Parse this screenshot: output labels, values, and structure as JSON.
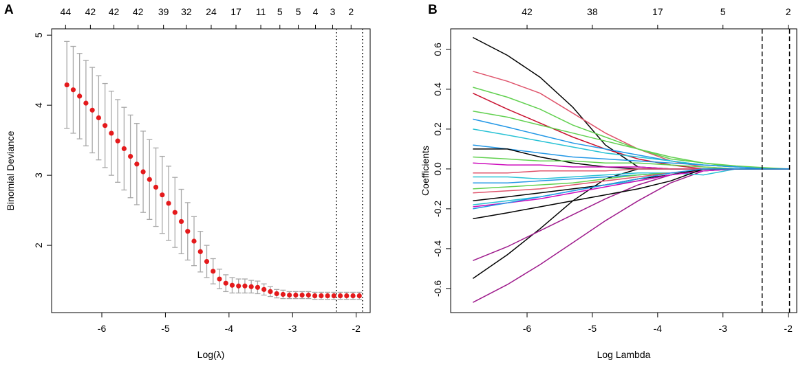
{
  "chart_data": [
    {
      "type": "errorbar",
      "panel": "A",
      "xlabel": "Log(λ)",
      "ylabel": "Binomial Deviance",
      "xlim": [
        -6.79,
        -1.78
      ],
      "ylim": [
        1.04,
        5.09
      ],
      "xticks": [
        -6,
        -5,
        -4,
        -3,
        -2
      ],
      "yticks": [
        2,
        3,
        4,
        5
      ],
      "top_ticks": [
        {
          "value": -6.57,
          "label": "44"
        },
        {
          "value": -6.18,
          "label": "42"
        },
        {
          "value": -5.81,
          "label": "42"
        },
        {
          "value": -5.43,
          "label": "42"
        },
        {
          "value": -5.03,
          "label": "39"
        },
        {
          "value": -4.67,
          "label": "32"
        },
        {
          "value": -4.28,
          "label": "24"
        },
        {
          "value": -3.89,
          "label": "17"
        },
        {
          "value": -3.5,
          "label": "11"
        },
        {
          "value": -3.2,
          "label": "5"
        },
        {
          "value": -2.91,
          "label": "5"
        },
        {
          "value": -2.64,
          "label": "4"
        },
        {
          "value": -2.37,
          "label": "3"
        },
        {
          "value": -2.08,
          "label": "2"
        }
      ],
      "vlines": [
        -2.31,
        -1.9
      ],
      "vline_style": "dotted",
      "color": "#e41a1c",
      "error_color": "#a8a8a8",
      "x": [
        -6.55,
        -6.45,
        -6.35,
        -6.25,
        -6.15,
        -6.05,
        -5.95,
        -5.85,
        -5.75,
        -5.65,
        -5.55,
        -5.45,
        -5.35,
        -5.25,
        -5.15,
        -5.05,
        -4.95,
        -4.85,
        -4.75,
        -4.65,
        -4.55,
        -4.45,
        -4.35,
        -4.25,
        -4.15,
        -4.05,
        -3.95,
        -3.85,
        -3.75,
        -3.65,
        -3.55,
        -3.45,
        -3.35,
        -3.25,
        -3.15,
        -3.05,
        -2.95,
        -2.85,
        -2.75,
        -2.65,
        -2.55,
        -2.45,
        -2.35,
        -2.25,
        -2.15,
        -2.05,
        -1.95
      ],
      "values": [
        4.29,
        4.22,
        4.13,
        4.03,
        3.93,
        3.82,
        3.71,
        3.6,
        3.49,
        3.38,
        3.27,
        3.16,
        3.05,
        2.94,
        2.83,
        2.72,
        2.6,
        2.47,
        2.34,
        2.2,
        2.06,
        1.91,
        1.77,
        1.63,
        1.52,
        1.46,
        1.43,
        1.42,
        1.42,
        1.41,
        1.4,
        1.37,
        1.34,
        1.31,
        1.3,
        1.29,
        1.29,
        1.29,
        1.29,
        1.28,
        1.28,
        1.28,
        1.28,
        1.28,
        1.28,
        1.28,
        1.28
      ],
      "errors": [
        0.62,
        0.62,
        0.61,
        0.61,
        0.61,
        0.6,
        0.6,
        0.6,
        0.59,
        0.59,
        0.59,
        0.58,
        0.58,
        0.57,
        0.56,
        0.55,
        0.53,
        0.5,
        0.46,
        0.41,
        0.35,
        0.29,
        0.23,
        0.18,
        0.14,
        0.12,
        0.11,
        0.1,
        0.1,
        0.09,
        0.09,
        0.08,
        0.07,
        0.06,
        0.06,
        0.05,
        0.05,
        0.05,
        0.05,
        0.05,
        0.05,
        0.05,
        0.05,
        0.05,
        0.05,
        0.05,
        0.05
      ]
    },
    {
      "type": "line",
      "panel": "B",
      "xlabel": "Log Lambda",
      "ylabel": "Coefficients",
      "xlim": [
        -7.17,
        -1.87
      ],
      "ylim": [
        -0.721,
        0.703
      ],
      "xticks": [
        -6,
        -5,
        -4,
        -3,
        -2
      ],
      "yticks": [
        -0.6,
        -0.4,
        -0.2,
        {
          "value": 0,
          "label": "0.0"
        },
        0.2,
        0.4,
        0.6
      ],
      "top_ticks": [
        {
          "value": -6,
          "label": "42"
        },
        {
          "value": -5,
          "label": "38"
        },
        {
          "value": -4,
          "label": "17"
        },
        {
          "value": -3,
          "label": "5"
        },
        {
          "value": -2,
          "label": "2"
        }
      ],
      "vlines": [
        -2.4,
        -1.98
      ],
      "vline_style": "dashed",
      "x": [
        -6.83,
        -6.3,
        -5.8,
        -5.3,
        -4.8,
        -4.3,
        -3.8,
        -3.3,
        -2.8,
        -2.3,
        -1.98
      ],
      "series": [
        {
          "color": "#000000",
          "values": [
            0.66,
            0.57,
            0.46,
            0.31,
            0.12,
            0.01,
            0,
            0,
            0,
            0,
            0
          ]
        },
        {
          "color": "#000000",
          "values": [
            -0.55,
            -0.43,
            -0.3,
            -0.16,
            -0.05,
            0,
            0,
            0,
            0,
            0,
            0
          ]
        },
        {
          "color": "#9e1a8c",
          "values": [
            -0.67,
            -0.58,
            -0.48,
            -0.37,
            -0.26,
            -0.16,
            -0.07,
            -0.01,
            0,
            0,
            0
          ]
        },
        {
          "color": "#9e1a8c",
          "values": [
            -0.46,
            -0.39,
            -0.31,
            -0.23,
            -0.15,
            -0.08,
            -0.03,
            0,
            0,
            0,
            0
          ]
        },
        {
          "color": "#df536b",
          "values": [
            0.49,
            0.44,
            0.38,
            0.28,
            0.18,
            0.1,
            0.04,
            0.01,
            0,
            0,
            0
          ]
        },
        {
          "color": "#61d04f",
          "values": [
            0.41,
            0.36,
            0.3,
            0.22,
            0.16,
            0.1,
            0.05,
            0.03,
            0.015,
            0.005,
            0
          ]
        },
        {
          "color": "#c8102e",
          "values": [
            0.38,
            0.3,
            0.23,
            0.16,
            0.1,
            0.05,
            0.02,
            0,
            0,
            0,
            0
          ]
        },
        {
          "color": "#61d04f",
          "values": [
            0.29,
            0.26,
            0.22,
            0.18,
            0.14,
            0.1,
            0.06,
            0.03,
            0.01,
            0,
            0
          ]
        },
        {
          "color": "#2297e6",
          "values": [
            0.25,
            0.21,
            0.17,
            0.13,
            0.1,
            0.07,
            0.04,
            0.02,
            0.01,
            0,
            0
          ]
        },
        {
          "color": "#28c2d5",
          "values": [
            0.2,
            0.17,
            0.14,
            0.11,
            0.08,
            0.06,
            0.04,
            0.02,
            0.01,
            0,
            0
          ]
        },
        {
          "color": "#2297e6",
          "values": [
            0.12,
            0.1,
            0.08,
            0.06,
            0.05,
            0.04,
            0.03,
            0.02,
            0.01,
            0,
            0
          ]
        },
        {
          "color": "#000000",
          "values": [
            0.1,
            0.1,
            0.06,
            0.03,
            0.01,
            0,
            0,
            0,
            0,
            0,
            0
          ]
        },
        {
          "color": "#61d04f",
          "values": [
            0.06,
            0.05,
            0.04,
            0.04,
            0.03,
            0.03,
            0.02,
            0.01,
            0,
            0,
            0
          ]
        },
        {
          "color": "#cd0bbc",
          "values": [
            0.03,
            0.02,
            0.02,
            0.01,
            0.01,
            0.01,
            0,
            0,
            0,
            0,
            0
          ]
        },
        {
          "color": "#df536b",
          "values": [
            -0.02,
            -0.02,
            -0.01,
            -0.01,
            -0.01,
            0,
            0,
            0,
            0,
            0,
            0
          ]
        },
        {
          "color": "#28c2d5",
          "values": [
            -0.04,
            -0.04,
            -0.05,
            -0.04,
            -0.03,
            -0.02,
            -0.02,
            -0.03,
            0,
            0,
            0
          ]
        },
        {
          "color": "#2297e6",
          "values": [
            -0.07,
            -0.07,
            -0.06,
            -0.05,
            -0.04,
            -0.03,
            -0.02,
            -0.01,
            0,
            0,
            0
          ]
        },
        {
          "color": "#61d04f",
          "values": [
            -0.1,
            -0.09,
            -0.08,
            -0.07,
            -0.05,
            -0.03,
            -0.02,
            -0.01,
            0,
            0,
            0
          ]
        },
        {
          "color": "#df536b",
          "values": [
            -0.12,
            -0.11,
            -0.1,
            -0.08,
            -0.06,
            -0.04,
            -0.02,
            -0.01,
            0,
            0,
            0
          ]
        },
        {
          "color": "#000000",
          "values": [
            -0.16,
            -0.14,
            -0.12,
            -0.1,
            -0.08,
            -0.05,
            -0.03,
            0,
            0,
            0,
            0
          ]
        },
        {
          "color": "#28c2d5",
          "values": [
            -0.18,
            -0.16,
            -0.14,
            -0.11,
            -0.08,
            -0.06,
            -0.03,
            -0.01,
            0,
            0,
            0
          ]
        },
        {
          "color": "#cd0bbc",
          "values": [
            -0.19,
            -0.17,
            -0.15,
            -0.12,
            -0.09,
            -0.06,
            -0.03,
            -0.01,
            0,
            0,
            0
          ]
        },
        {
          "color": "#000000",
          "values": [
            -0.25,
            -0.22,
            -0.19,
            -0.16,
            -0.13,
            -0.1,
            -0.06,
            0,
            0,
            0,
            0
          ]
        },
        {
          "color": "#2297e6",
          "values": [
            -0.2,
            -0.17,
            -0.14,
            -0.11,
            -0.08,
            -0.05,
            -0.02,
            0,
            0,
            0,
            0
          ]
        }
      ]
    }
  ]
}
